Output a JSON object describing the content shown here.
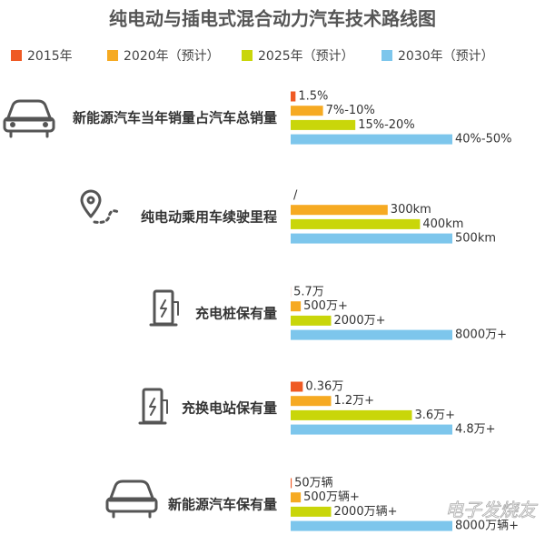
{
  "chart_data": {
    "type": "bar",
    "orientation": "horizontal",
    "title": "纯电动与插电式混合动力汽车技术路线图",
    "categories": [
      "新能源汽车当年销量占汽车总销量",
      "纯电动乘用车续驶里程",
      "充电桩保有量",
      "充换电站保有量",
      "新能源汽车保有量"
    ],
    "series": [
      {
        "name": "2015年",
        "color": "#ef5a24",
        "values": [
          1.5,
          null,
          5.7,
          0.36,
          50
        ],
        "value_labels": [
          "1.5%",
          "/",
          "5.7万",
          "0.36万",
          "50万辆"
        ]
      },
      {
        "name": "2020年（预计）",
        "color": "#f6aa22",
        "values": [
          10,
          300,
          500,
          1.2,
          500
        ],
        "value_labels": [
          "7%-10%",
          "300km",
          "500万+",
          "1.2万+",
          "500万辆+"
        ]
      },
      {
        "name": "2025年（预计）",
        "color": "#c9d60a",
        "values": [
          20,
          400,
          2000,
          3.6,
          2000
        ],
        "value_labels": [
          "15%-20%",
          "400km",
          "2000万+",
          "3.6万+",
          "2000万辆+"
        ]
      },
      {
        "name": "2030年（预计）",
        "color": "#7dc6ec",
        "values": [
          50,
          500,
          8000,
          4.8,
          8000
        ],
        "value_labels": [
          "40%-50%",
          "500km",
          "8000万+",
          "4.8万+",
          "8000万辆+"
        ]
      }
    ],
    "watermark": "电子发烧友"
  }
}
